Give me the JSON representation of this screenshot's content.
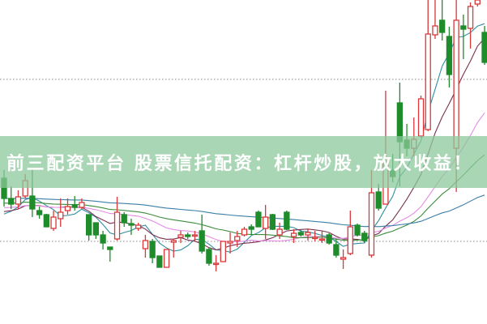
{
  "banner": {
    "text": "前三配资平台 股票信托配资：杠杆炒股，放大收益！"
  },
  "chart_data": {
    "type": "candlestick",
    "title": "",
    "xlabel": "",
    "ylabel": "",
    "ylim": [
      0,
      100
    ],
    "grid": "two dotted horizontal lines",
    "gridlines": [
      75.5,
      25.5
    ],
    "colors": {
      "up": "#d8383a",
      "down": "#1e8c2a",
      "banner": "#8cc89b",
      "ma": [
        "#2f8fa0",
        "#7a3050",
        "#e48ce4",
        "#3c8c3c",
        "#3a7fa8"
      ]
    },
    "candles": [
      [
        45,
        47.5,
        36.25,
        38.75
      ],
      [
        38.75,
        42.5,
        35.5,
        37
      ],
      [
        37,
        41.25,
        35.5,
        39.25
      ],
      [
        39.5,
        46.25,
        38.75,
        44.25
      ],
      [
        39.5,
        48,
        33,
        35.5
      ],
      [
        35,
        36.25,
        32.5,
        33.75
      ],
      [
        33.75,
        34,
        30,
        30
      ],
      [
        29.5,
        35,
        28.75,
        33
      ],
      [
        32.5,
        38.75,
        30,
        34.5
      ],
      [
        35,
        38.75,
        33.75,
        36.25
      ],
      [
        36.75,
        39.5,
        35,
        36
      ],
      [
        36,
        38.75,
        35.5,
        37.5
      ],
      [
        33.75,
        33.75,
        25.75,
        27.5
      ],
      [
        31.25,
        31.25,
        26.25,
        27.5
      ],
      [
        27.5,
        28.75,
        23,
        25
      ],
      [
        23.75,
        23.75,
        19.25,
        23
      ],
      [
        26.25,
        39.25,
        25.75,
        34.5
      ],
      [
        33.75,
        34.5,
        30,
        31.25
      ],
      [
        31,
        32.5,
        27.5,
        30.5
      ],
      [
        29.5,
        31.25,
        28.75,
        30.5
      ],
      [
        23.25,
        27.5,
        20.5,
        25.75
      ],
      [
        25.5,
        26.25,
        18.75,
        20.5
      ],
      [
        21,
        21,
        17.5,
        17.5
      ],
      [
        17.5,
        23,
        17.5,
        23
      ],
      [
        25.25,
        26.25,
        20.5,
        25.75
      ],
      [
        26.75,
        28.75,
        25,
        27.5
      ],
      [
        27.5,
        28.25,
        26.25,
        27
      ],
      [
        27.25,
        28.75,
        25.5,
        27.5
      ],
      [
        28.75,
        33.75,
        21.75,
        22.5
      ],
      [
        23,
        23.75,
        18,
        18.75
      ],
      [
        18.5,
        21.25,
        16.25,
        18.75
      ],
      [
        19.25,
        25.5,
        19.25,
        25.5
      ],
      [
        25,
        28.25,
        21.75,
        25.5
      ],
      [
        25.75,
        28.75,
        23.75,
        27
      ],
      [
        27.5,
        30,
        27,
        29.25
      ],
      [
        30,
        30.75,
        27.5,
        29.25
      ],
      [
        34.5,
        35,
        30,
        30
      ],
      [
        29.5,
        36.75,
        26.25,
        33
      ],
      [
        33.75,
        34,
        29,
        29.25
      ],
      [
        27.5,
        31.25,
        26.25,
        29.25
      ],
      [
        34.5,
        35,
        29,
        29.25
      ],
      [
        27,
        29.25,
        25,
        28
      ],
      [
        28.25,
        29,
        27,
        27.5
      ],
      [
        27.5,
        29.5,
        25.75,
        28.25
      ],
      [
        26.5,
        28.75,
        25.5,
        26.75
      ],
      [
        26,
        28.75,
        25,
        26.25
      ],
      [
        27.5,
        28,
        24.5,
        25
      ],
      [
        24.5,
        26.25,
        20.5,
        21.25
      ],
      [
        20,
        23,
        17,
        20.5
      ],
      [
        21.75,
        35,
        21.25,
        30
      ],
      [
        30.5,
        31,
        27,
        27.5
      ],
      [
        28,
        28.75,
        25,
        25.75
      ],
      [
        21.25,
        47.5,
        20.5,
        40.5
      ],
      [
        40.75,
        43.25,
        35,
        35.75
      ],
      [
        37,
        72,
        37,
        49.5
      ],
      [
        47.5,
        52.5,
        43.75,
        45.5
      ],
      [
        68.25,
        74.5,
        42.5,
        56.25
      ],
      [
        56.75,
        61.75,
        51.75,
        54.25
      ],
      [
        54.25,
        63.75,
        51.75,
        57
      ],
      [
        58,
        70.5,
        57.5,
        69.5
      ],
      [
        60,
        100,
        59.5,
        89.5
      ],
      [
        89.25,
        100,
        88,
        92
      ],
      [
        93.75,
        100,
        87.5,
        90
      ],
      [
        88.75,
        91.75,
        73,
        77
      ],
      [
        54.25,
        100,
        40.75,
        93.75
      ],
      [
        92,
        95.5,
        81.75,
        91
      ],
      [
        91.25,
        99.25,
        85,
        98
      ],
      [
        98.75,
        100,
        98,
        100
      ],
      [
        90,
        92,
        80,
        80.75
      ]
    ]
  }
}
